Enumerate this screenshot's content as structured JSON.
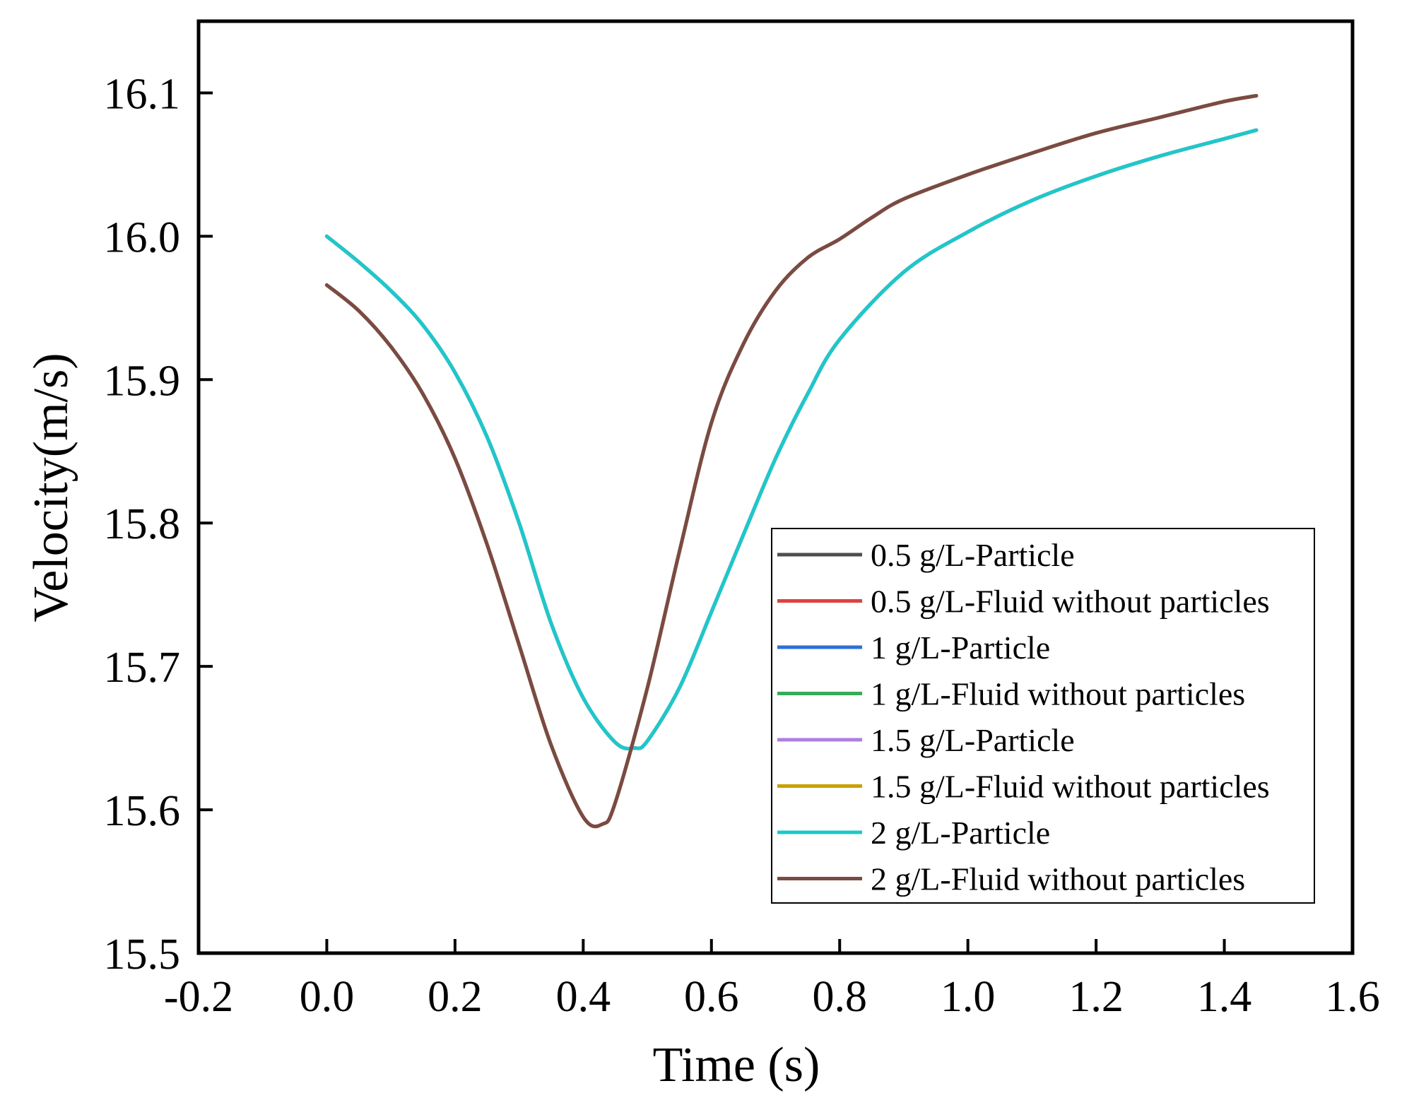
{
  "chart_data": {
    "type": "line",
    "title": "",
    "xlabel": "Time (s)",
    "ylabel": "Velocity(m/s)",
    "xlim": [
      -0.2,
      1.6
    ],
    "ylim": [
      15.5,
      16.15
    ],
    "xticks": [
      -0.2,
      0.0,
      0.2,
      0.4,
      0.6,
      0.8,
      1.0,
      1.2,
      1.4,
      1.6
    ],
    "xtick_labels": [
      "-0.2",
      "0.0",
      "0.2",
      "0.4",
      "0.6",
      "0.8",
      "1.0",
      "1.2",
      "1.4",
      "1.6"
    ],
    "yticks": [
      15.5,
      15.6,
      15.7,
      15.8,
      15.9,
      16.0,
      16.1
    ],
    "ytick_labels": [
      "15.5",
      "15.6",
      "15.7",
      "15.8",
      "15.9",
      "16.0",
      "16.1"
    ],
    "grid": false,
    "legend_position": "right",
    "series": [
      {
        "name": "0.5 g/L-Particle",
        "color": "#4d4d4d",
        "x": [
          0.0,
          0.05,
          0.1,
          0.15,
          0.2,
          0.25,
          0.3,
          0.35,
          0.4,
          0.45,
          0.48,
          0.5,
          0.55,
          0.6,
          0.65,
          0.7,
          0.75,
          0.8,
          0.9,
          1.0,
          1.1,
          1.2,
          1.3,
          1.4,
          1.45
        ],
        "y": [
          16.0,
          15.982,
          15.962,
          15.938,
          15.905,
          15.86,
          15.8,
          15.73,
          15.678,
          15.647,
          15.643,
          15.648,
          15.685,
          15.738,
          15.792,
          15.845,
          15.89,
          15.928,
          15.975,
          16.003,
          16.025,
          16.042,
          16.056,
          16.068,
          16.074
        ]
      },
      {
        "name": "0.5 g/L-Fluid without particles",
        "color": "#e04040",
        "x": [
          0.0,
          0.05,
          0.1,
          0.15,
          0.2,
          0.25,
          0.3,
          0.35,
          0.4,
          0.43,
          0.45,
          0.5,
          0.55,
          0.6,
          0.65,
          0.7,
          0.75,
          0.8,
          0.85,
          0.9,
          1.0,
          1.1,
          1.2,
          1.3,
          1.4,
          1.45
        ],
        "y": [
          15.966,
          15.948,
          15.923,
          15.89,
          15.845,
          15.785,
          15.715,
          15.645,
          15.595,
          15.59,
          15.605,
          15.685,
          15.78,
          15.87,
          15.925,
          15.962,
          15.985,
          15.998,
          16.013,
          16.026,
          16.043,
          16.058,
          16.072,
          16.083,
          16.094,
          16.098
        ]
      },
      {
        "name": "1 g/L-Particle",
        "color": "#2f6fd6",
        "x": [
          0.0,
          0.05,
          0.1,
          0.15,
          0.2,
          0.25,
          0.3,
          0.35,
          0.4,
          0.45,
          0.48,
          0.5,
          0.55,
          0.6,
          0.65,
          0.7,
          0.75,
          0.8,
          0.9,
          1.0,
          1.1,
          1.2,
          1.3,
          1.4,
          1.45
        ],
        "y": [
          16.0,
          15.982,
          15.962,
          15.938,
          15.905,
          15.86,
          15.8,
          15.73,
          15.678,
          15.647,
          15.643,
          15.648,
          15.685,
          15.738,
          15.792,
          15.845,
          15.89,
          15.928,
          15.975,
          16.003,
          16.025,
          16.042,
          16.056,
          16.068,
          16.074
        ]
      },
      {
        "name": "1 g/L-Fluid without particles",
        "color": "#3aaa5a",
        "x": [
          0.0,
          0.05,
          0.1,
          0.15,
          0.2,
          0.25,
          0.3,
          0.35,
          0.4,
          0.43,
          0.45,
          0.5,
          0.55,
          0.6,
          0.65,
          0.7,
          0.75,
          0.8,
          0.85,
          0.9,
          1.0,
          1.1,
          1.2,
          1.3,
          1.4,
          1.45
        ],
        "y": [
          15.966,
          15.948,
          15.923,
          15.89,
          15.845,
          15.785,
          15.715,
          15.645,
          15.595,
          15.59,
          15.605,
          15.685,
          15.78,
          15.87,
          15.925,
          15.962,
          15.985,
          15.998,
          16.013,
          16.026,
          16.043,
          16.058,
          16.072,
          16.083,
          16.094,
          16.098
        ]
      },
      {
        "name": "1.5 g/L-Particle",
        "color": "#b07fe0",
        "x": [
          0.0,
          0.05,
          0.1,
          0.15,
          0.2,
          0.25,
          0.3,
          0.35,
          0.4,
          0.45,
          0.48,
          0.5,
          0.55,
          0.6,
          0.65,
          0.7,
          0.75,
          0.8,
          0.9,
          1.0,
          1.1,
          1.2,
          1.3,
          1.4,
          1.45
        ],
        "y": [
          16.0,
          15.982,
          15.962,
          15.938,
          15.905,
          15.86,
          15.8,
          15.73,
          15.678,
          15.647,
          15.643,
          15.648,
          15.685,
          15.738,
          15.792,
          15.845,
          15.89,
          15.928,
          15.975,
          16.003,
          16.025,
          16.042,
          16.056,
          16.068,
          16.074
        ]
      },
      {
        "name": "1.5 g/L-Fluid without particles",
        "color": "#c9a000",
        "x": [
          0.0,
          0.05,
          0.1,
          0.15,
          0.2,
          0.25,
          0.3,
          0.35,
          0.4,
          0.43,
          0.45,
          0.5,
          0.55,
          0.6,
          0.65,
          0.7,
          0.75,
          0.8,
          0.85,
          0.9,
          1.0,
          1.1,
          1.2,
          1.3,
          1.4,
          1.45
        ],
        "y": [
          15.966,
          15.948,
          15.923,
          15.89,
          15.845,
          15.785,
          15.715,
          15.645,
          15.595,
          15.59,
          15.605,
          15.685,
          15.78,
          15.87,
          15.925,
          15.962,
          15.985,
          15.998,
          16.013,
          16.026,
          16.043,
          16.058,
          16.072,
          16.083,
          16.094,
          16.098
        ]
      },
      {
        "name": "2 g/L-Particle",
        "color": "#1ec8c8",
        "x": [
          0.0,
          0.05,
          0.1,
          0.15,
          0.2,
          0.25,
          0.3,
          0.35,
          0.4,
          0.45,
          0.48,
          0.5,
          0.55,
          0.6,
          0.65,
          0.7,
          0.75,
          0.8,
          0.9,
          1.0,
          1.1,
          1.2,
          1.3,
          1.4,
          1.45
        ],
        "y": [
          16.0,
          15.982,
          15.962,
          15.938,
          15.905,
          15.86,
          15.8,
          15.73,
          15.678,
          15.647,
          15.643,
          15.648,
          15.685,
          15.738,
          15.792,
          15.845,
          15.89,
          15.928,
          15.975,
          16.003,
          16.025,
          16.042,
          16.056,
          16.068,
          16.074
        ]
      },
      {
        "name": "2 g/L-Fluid without particles",
        "color": "#7a4a46",
        "x": [
          0.0,
          0.05,
          0.1,
          0.15,
          0.2,
          0.25,
          0.3,
          0.35,
          0.4,
          0.43,
          0.45,
          0.5,
          0.55,
          0.6,
          0.65,
          0.7,
          0.75,
          0.8,
          0.85,
          0.9,
          1.0,
          1.1,
          1.2,
          1.3,
          1.4,
          1.45
        ],
        "y": [
          15.966,
          15.948,
          15.923,
          15.89,
          15.845,
          15.785,
          15.715,
          15.645,
          15.595,
          15.59,
          15.605,
          15.685,
          15.78,
          15.87,
          15.925,
          15.962,
          15.985,
          15.998,
          16.013,
          16.026,
          16.043,
          16.058,
          16.072,
          16.083,
          16.094,
          16.098
        ]
      }
    ]
  }
}
